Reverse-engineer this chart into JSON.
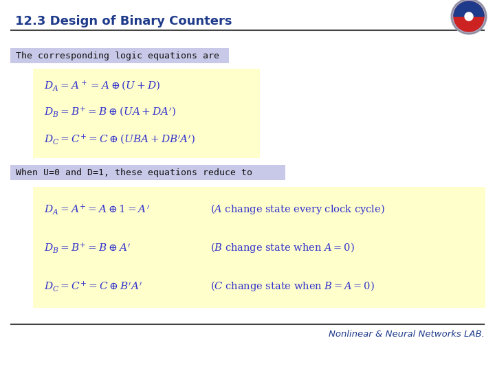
{
  "title": "12.3 Design of Binary Counters",
  "title_color": "#1E3A8A",
  "title_fontsize": 13,
  "bg_color": "#FFFFFF",
  "label1_text": "The corresponding logic equations are",
  "label1_bg": "#C8C8E8",
  "label2_text": "When U=0 and D=1, these equations reduce to",
  "label2_bg": "#C8C8E8",
  "eq_box1_bg": "#FFFFCC",
  "eq_box2_bg": "#FFFFCC",
  "footer_text": "Nonlinear & Neural Networks LAB.",
  "footer_color": "#1E3A8A",
  "line_color": "#333333",
  "eq_color": "#3333CC"
}
